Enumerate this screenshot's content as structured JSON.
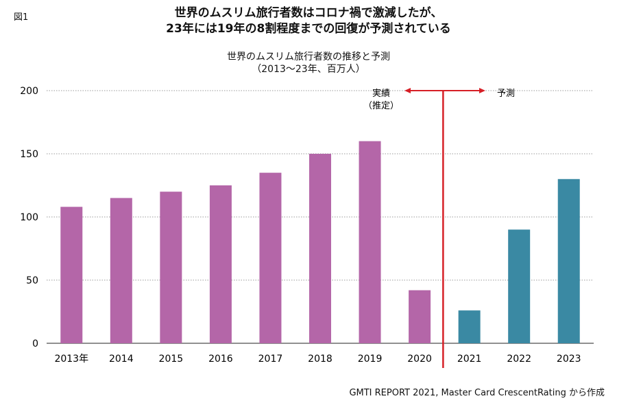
{
  "figure_label": "図1",
  "headline": {
    "line1": "世界のムスリム旅行者数はコロナ禍で激減したが、",
    "line2": "23年には19年の8割程度までの回復が予測されている"
  },
  "source": "GMTI REPORT 2021, Master Card CrescentRating から作成",
  "colors": {
    "actual": "#b466a8",
    "forecast": "#3a89a3",
    "divider": "#d61f26",
    "grid": "#999999"
  },
  "chart_data": {
    "type": "bar",
    "title": "世界のムスリム旅行者数の推移と予測",
    "subtitle": "（2013〜23年、百万人）",
    "categories": [
      "2013年",
      "2014",
      "2015",
      "2016",
      "2017",
      "2018",
      "2019",
      "2020",
      "2021",
      "2022",
      "2023"
    ],
    "series": [
      {
        "values": [
          108,
          115,
          120,
          125,
          135,
          150,
          160,
          42,
          null,
          null,
          null
        ],
        "color": "#b466a8"
      },
      {
        "values": [
          null,
          null,
          null,
          null,
          null,
          null,
          null,
          null,
          26,
          90,
          130
        ],
        "color": "#3a89a3"
      }
    ],
    "y_ticks": [
      "0",
      "50",
      "100",
      "150",
      "200"
    ],
    "ylim": [
      0,
      200
    ],
    "grid": true,
    "annotations": {
      "actual_line1": "実績",
      "actual_line2": "（推定）",
      "forecast": "予測"
    }
  }
}
